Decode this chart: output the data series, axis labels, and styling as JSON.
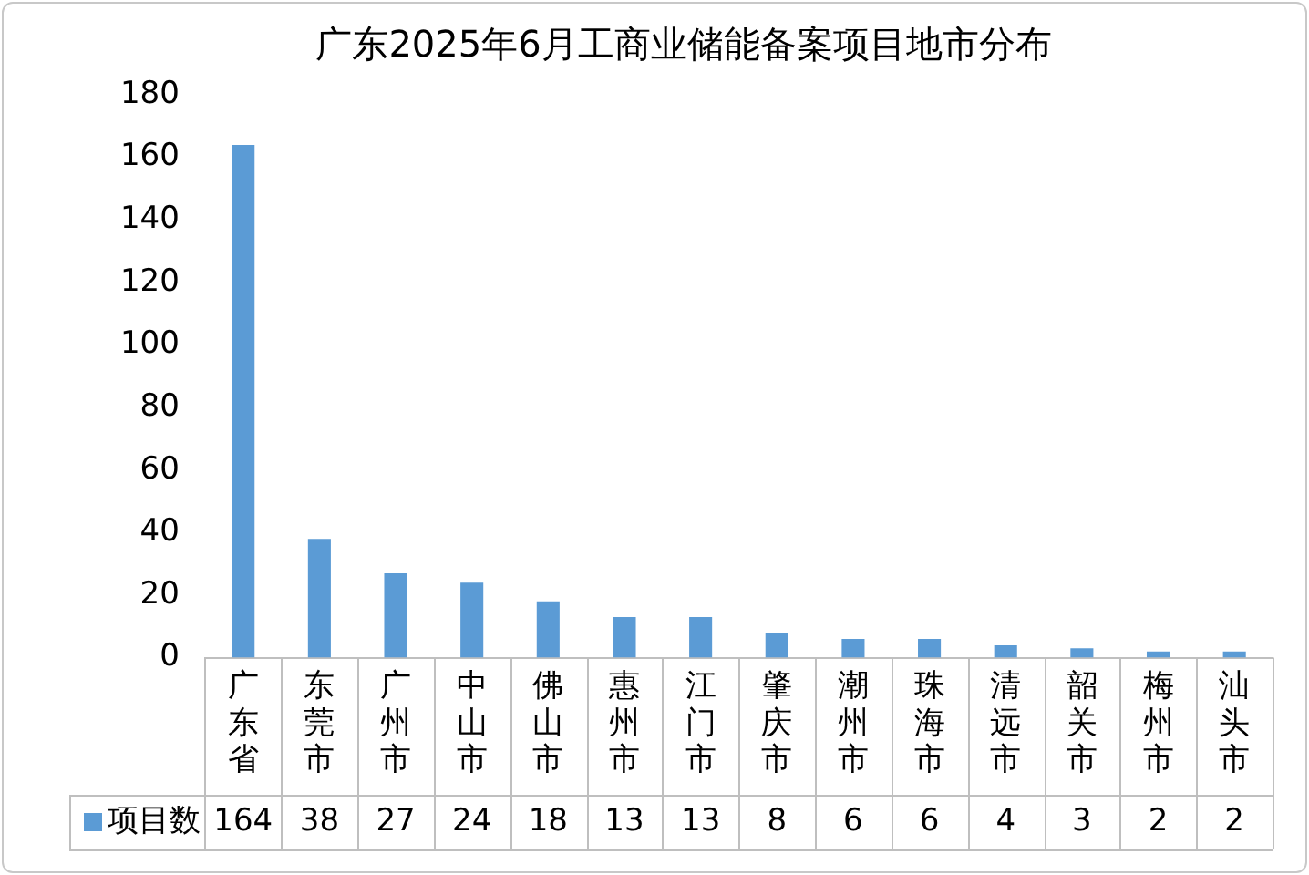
{
  "chart_data": {
    "type": "bar",
    "title": "广东2025年6月工商业储能备案项目地市分布",
    "categories": [
      "广东省",
      "东莞市",
      "广州市",
      "中山市",
      "佛山市",
      "惠州市",
      "江门市",
      "肇庆市",
      "潮州市",
      "珠海市",
      "清远市",
      "韶关市",
      "梅州市",
      "汕头市"
    ],
    "series": [
      {
        "name": "项目数",
        "color": "#5b9bd5",
        "values": [
          164,
          38,
          27,
          24,
          18,
          13,
          13,
          8,
          6,
          6,
          4,
          3,
          2,
          2
        ]
      }
    ],
    "ylim": [
      0,
      180
    ],
    "yticks": [
      0,
      20,
      40,
      60,
      80,
      100,
      120,
      140,
      160,
      180
    ],
    "grid": false,
    "legend": "bottom",
    "data_labels": true
  }
}
